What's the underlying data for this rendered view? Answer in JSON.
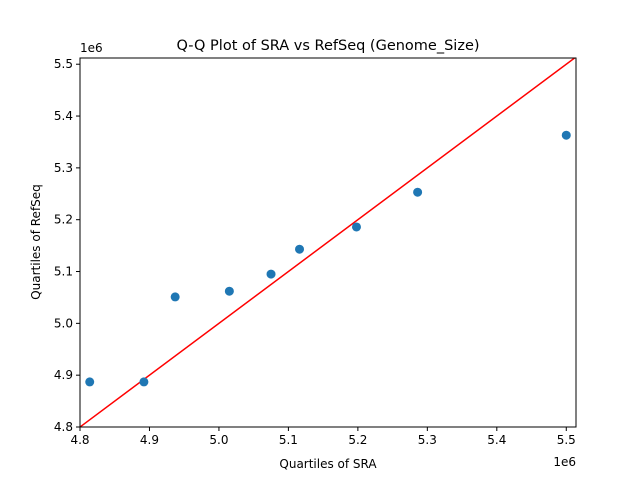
{
  "chart_data": {
    "type": "scatter",
    "title": "Q-Q Plot of SRA vs RefSeq (Genome_Size)",
    "xlabel": "Quartiles of SRA",
    "ylabel": "Quartiles of RefSeq",
    "x_offset_label": "1e6",
    "y_offset_label": "1e6",
    "xlim": [
      4.8,
      5.514
    ],
    "ylim": [
      4.8,
      5.512
    ],
    "xticks": [
      "4.8",
      "4.9",
      "5.0",
      "5.1",
      "5.2",
      "5.3",
      "5.4",
      "5.5"
    ],
    "yticks": [
      "4.8",
      "4.9",
      "5.0",
      "5.1",
      "5.2",
      "5.3",
      "5.4",
      "5.5"
    ],
    "grid": false,
    "points": {
      "x": [
        4.814,
        4.892,
        4.937,
        5.015,
        5.075,
        5.116,
        5.198,
        5.286,
        5.5
      ],
      "y": [
        4.887,
        4.887,
        5.051,
        5.062,
        5.095,
        5.143,
        5.186,
        5.253,
        5.363
      ],
      "color": "#1f77b4"
    },
    "reference_line": {
      "type": "y=x",
      "color": "#ff0000"
    }
  }
}
